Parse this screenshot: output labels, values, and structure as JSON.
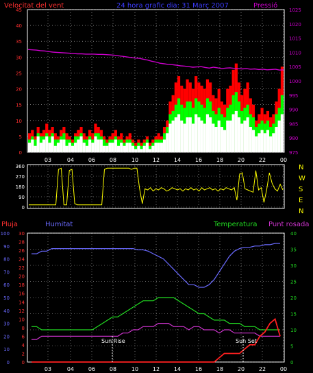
{
  "header": {
    "left_label": "Velocitat del vent",
    "center_label": "24 hora grafic dia: 31 Març 2007",
    "right_label": "Pressió"
  },
  "colors": {
    "background": "#000000",
    "grid": "#c0c0c0",
    "wind_avg": "#ff0000",
    "wind_gust": "#00ff00",
    "wind_light": "#ffffff",
    "pressure": "#cc00cc",
    "direction": "#ffff00",
    "rain": "#ff2020",
    "humidity": "#6a6aff",
    "temperature": "#22dd22",
    "dewpoint": "#cc33cc",
    "axis_red": "#ff3030",
    "axis_blue": "#6a6aff",
    "axis_green": "#22dd22",
    "axis_magenta": "#cc33cc",
    "sun_line": "#ffffff"
  },
  "chart_data": [
    {
      "type": "area",
      "name": "wind_and_pressure",
      "x_ticks": [
        "03",
        "04",
        "06",
        "08",
        "10",
        "12",
        "14",
        "16",
        "18",
        "20",
        "22",
        "00"
      ],
      "y_left_ticks": [
        "0",
        "5",
        "10",
        "15",
        "20",
        "25",
        "30",
        "35",
        "40",
        "45"
      ],
      "y_left_range": [
        0,
        45
      ],
      "y_right_ticks": [
        "975",
        "980",
        "985",
        "990",
        "995",
        "1000",
        "1005",
        "1010",
        "1015",
        "1020",
        "1025"
      ],
      "y_right_range": [
        975,
        1025
      ],
      "wind_avg": [
        6,
        7,
        5,
        8,
        6,
        7,
        9,
        7,
        8,
        6,
        5,
        7,
        8,
        6,
        5,
        4,
        6,
        7,
        8,
        6,
        5,
        7,
        6,
        9,
        8,
        7,
        5,
        4,
        5,
        6,
        7,
        5,
        6,
        4,
        5,
        6,
        4,
        3,
        4,
        3,
        4,
        5,
        3,
        4,
        5,
        6,
        5,
        8,
        10,
        16,
        18,
        22,
        24,
        21,
        20,
        23,
        22,
        20,
        24,
        22,
        21,
        20,
        23,
        22,
        18,
        17,
        20,
        16,
        15,
        20,
        21,
        26,
        28,
        22,
        18,
        20,
        22,
        17,
        15,
        10,
        12,
        14,
        12,
        13,
        11,
        12,
        16,
        20,
        27
      ],
      "wind_gust": [
        4,
        5,
        4,
        6,
        5,
        5,
        6,
        5,
        6,
        4,
        4,
        5,
        6,
        4,
        4,
        3,
        5,
        5,
        6,
        4,
        4,
        5,
        4,
        6,
        6,
        5,
        4,
        3,
        4,
        4,
        5,
        4,
        4,
        3,
        4,
        4,
        3,
        2,
        3,
        2,
        3,
        4,
        2,
        3,
        4,
        4,
        4,
        6,
        8,
        12,
        13,
        15,
        17,
        15,
        14,
        16,
        16,
        14,
        17,
        16,
        15,
        14,
        17,
        16,
        13,
        12,
        14,
        12,
        11,
        14,
        15,
        18,
        19,
        16,
        13,
        14,
        15,
        12,
        11,
        8,
        9,
        10,
        9,
        10,
        8,
        9,
        12,
        14,
        18
      ],
      "wind_light": [
        3,
        4,
        2,
        5,
        3,
        4,
        5,
        3,
        5,
        2,
        3,
        4,
        4,
        2,
        3,
        2,
        3,
        4,
        5,
        3,
        2,
        4,
        3,
        5,
        4,
        4,
        2,
        2,
        3,
        3,
        4,
        2,
        3,
        2,
        3,
        3,
        2,
        1,
        2,
        1,
        2,
        3,
        1,
        2,
        3,
        3,
        3,
        4,
        6,
        9,
        10,
        11,
        12,
        10,
        9,
        11,
        11,
        9,
        12,
        11,
        10,
        9,
        12,
        11,
        9,
        8,
        10,
        8,
        7,
        10,
        10,
        12,
        13,
        11,
        9,
        10,
        11,
        8,
        7,
        5,
        6,
        7,
        6,
        7,
        5,
        6,
        8,
        10,
        12
      ],
      "pressure": [
        1011.0,
        1010.9,
        1010.8,
        1010.6,
        1010.5,
        1010.3,
        1010.1,
        1010.0,
        1009.9,
        1009.8,
        1009.7,
        1009.6,
        1009.5,
        1009.5,
        1009.4,
        1009.4,
        1009.4,
        1009.3,
        1009.3,
        1009.2,
        1009.1,
        1009.0,
        1008.8,
        1008.6,
        1008.4,
        1008.2,
        1008.0,
        1007.9,
        1007.6,
        1007.3,
        1006.9,
        1006.6,
        1006.2,
        1006.0,
        1005.8,
        1005.7,
        1005.5,
        1005.3,
        1005.2,
        1005.0,
        1004.8,
        1004.9,
        1005.0,
        1004.7,
        1004.5,
        1004.8,
        1004.6,
        1004.3,
        1004.5,
        1004.6,
        1004.4,
        1004.3,
        1004.2,
        1004.3,
        1004.1,
        1004.2,
        1004.0,
        1004.1,
        1003.9,
        1004.0,
        1004.1,
        1003.8,
        1003.9
      ],
      "series": [
        {
          "name": "Velocitat del vent"
        },
        {
          "name": "Pressió"
        }
      ]
    },
    {
      "type": "line",
      "name": "wind_direction",
      "y_left_ticks": [
        "360",
        "270",
        "180",
        "90",
        "0"
      ],
      "y_range": [
        0,
        360
      ],
      "right_labels": [
        "N",
        "W",
        "S",
        "E",
        "N"
      ],
      "direction": [
        20,
        20,
        20,
        20,
        20,
        20,
        20,
        20,
        20,
        20,
        20,
        330,
        340,
        20,
        20,
        320,
        330,
        30,
        20,
        20,
        20,
        20,
        20,
        20,
        20,
        20,
        20,
        20,
        330,
        340,
        340,
        340,
        340,
        340,
        340,
        340,
        340,
        340,
        330,
        340,
        340,
        160,
        30,
        160,
        150,
        170,
        140,
        160,
        150,
        170,
        160,
        140,
        150,
        170,
        160,
        150,
        160,
        140,
        160,
        150,
        170,
        150,
        160,
        140,
        170,
        150,
        160,
        170,
        150,
        160,
        140,
        160,
        150,
        170,
        160,
        150,
        170,
        60,
        290,
        300,
        160,
        150,
        140,
        130,
        320,
        150,
        170,
        40,
        150,
        300,
        210,
        160,
        140,
        200,
        150
      ]
    },
    {
      "type": "line",
      "name": "rain_humidity_temp_dewpoint",
      "left_headers": [
        "Pluja",
        "Humitat"
      ],
      "right_headers": [
        "Temperatura",
        "Punt rosada"
      ],
      "y_left1_ticks": [
        "0",
        "10",
        "20",
        "30",
        "40",
        "50",
        "60",
        "70",
        "80",
        "90",
        "100"
      ],
      "y_left1_range": [
        0,
        100
      ],
      "y_left2_ticks": [
        "0",
        "2",
        "4",
        "6",
        "8",
        "10",
        "12",
        "14",
        "16",
        "18",
        "20",
        "22",
        "24",
        "26",
        "28",
        "30"
      ],
      "y_left2_range": [
        0,
        30
      ],
      "y_right_ticks": [
        "0",
        "5",
        "10",
        "15",
        "20",
        "25",
        "30",
        "35",
        "40"
      ],
      "y_right_range": [
        0,
        40
      ],
      "x_ticks": [
        "03",
        "04",
        "06",
        "08",
        "10",
        "12",
        "14",
        "16",
        "18",
        "20",
        "22",
        "00"
      ],
      "sun_rise_label": "Sun Rise",
      "sun_set_label": "Sun Set",
      "humidity": [
        84,
        84,
        86,
        86,
        88,
        88,
        88,
        88,
        88,
        88,
        88,
        88,
        88,
        88,
        88,
        88,
        88,
        88,
        88,
        88,
        88,
        87,
        87,
        86,
        84,
        82,
        80,
        76,
        72,
        68,
        64,
        60,
        60,
        58,
        58,
        60,
        64,
        70,
        76,
        82,
        86,
        88,
        89,
        89,
        90,
        90,
        91,
        91,
        92,
        92
      ],
      "rain": [
        0,
        0,
        0,
        0,
        0,
        0,
        0,
        0,
        0,
        0,
        0,
        0,
        0,
        0,
        0,
        0,
        0,
        0,
        0,
        0,
        0,
        0,
        0,
        0,
        0,
        0,
        0,
        0,
        0,
        0,
        0,
        0,
        0,
        0,
        0,
        0,
        0,
        1,
        2,
        2,
        2,
        2,
        3,
        4,
        4,
        6,
        7,
        9,
        10,
        6
      ],
      "temperature": [
        11,
        11,
        10,
        10,
        10,
        10,
        10,
        10,
        10,
        10,
        10,
        10,
        10,
        11,
        12,
        13,
        14,
        14,
        15,
        16,
        17,
        18,
        19,
        19,
        19,
        20,
        20,
        20,
        20,
        19,
        18,
        17,
        16,
        15,
        15,
        14,
        13,
        13,
        13,
        12,
        12,
        12,
        11,
        11,
        11,
        10,
        10,
        10,
        10,
        10
      ],
      "dewpoint": [
        7,
        7,
        8,
        8,
        8,
        8,
        8,
        8,
        8,
        8,
        8,
        8,
        8,
        8,
        8,
        8,
        8,
        8,
        9,
        9,
        10,
        10,
        11,
        11,
        11,
        12,
        12,
        12,
        11,
        11,
        11,
        10,
        11,
        11,
        10,
        10,
        10,
        9,
        10,
        10,
        9,
        9,
        9,
        9,
        9,
        8,
        8,
        8,
        8,
        8
      ],
      "series": [
        {
          "name": "Pluja"
        },
        {
          "name": "Humitat"
        },
        {
          "name": "Temperatura"
        },
        {
          "name": "Punt rosada"
        }
      ]
    }
  ]
}
